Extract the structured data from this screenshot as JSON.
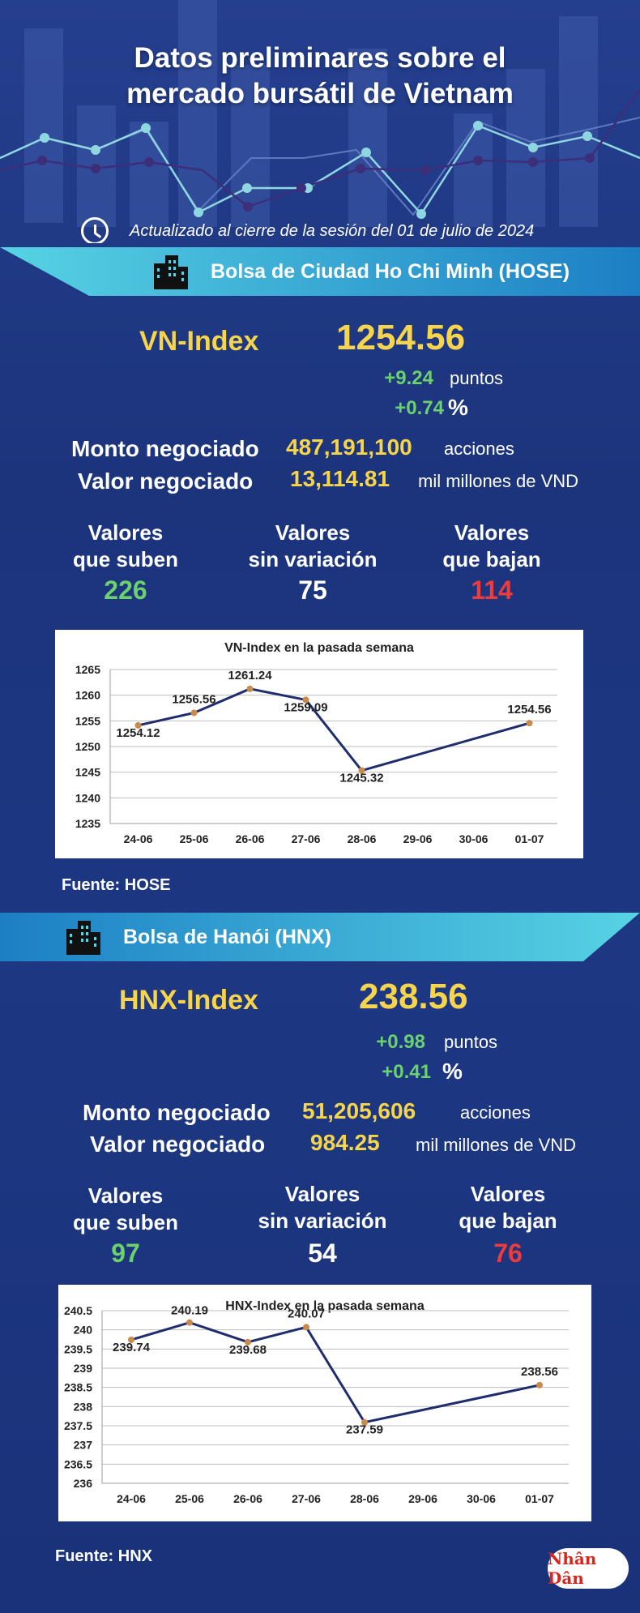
{
  "header": {
    "title_line1": "Datos preliminares sobre el",
    "title_line2": "mercado bursátil de Vietnam",
    "updated": "Actualizado al cierre de la sesión del 01 de julio de 2024"
  },
  "hose": {
    "exchange_label": "Bolsa de Ciudad Ho Chi Minh (HOSE)",
    "index_name": "VN-Index",
    "index_value": "1254.56",
    "change_points": "+9.24",
    "points_unit": "puntos",
    "change_percent": "+0.74",
    "percent_unit": "%",
    "volume_label": "Monto negociado",
    "volume_value": "487,191,100",
    "volume_unit": "acciones",
    "value_label": "Valor negociado",
    "value_value": "13,114.81",
    "value_unit": "mil millones de VND",
    "up_label_1": "Valores",
    "up_label_2": "que suben",
    "up_count": "226",
    "flat_label_1": "Valores",
    "flat_label_2": "sin variación",
    "flat_count": "75",
    "down_label_1": "Valores",
    "down_label_2": "que bajan",
    "down_count": "114",
    "source": "Fuente: HOSE"
  },
  "hnx": {
    "exchange_label": "Bolsa de Hanói (HNX)",
    "index_name": "HNX-Index",
    "index_value": "238.56",
    "change_points": "+0.98",
    "points_unit": "puntos",
    "change_percent": "+0.41",
    "percent_unit": "%",
    "volume_label": "Monto negociado",
    "volume_value": "51,205,606",
    "volume_unit": "acciones",
    "value_label": "Valor negociado",
    "value_value": "984.25",
    "value_unit": "mil millones de VND",
    "up_label_1": "Valores",
    "up_label_2": "que suben",
    "up_count": "97",
    "flat_label_1": "Valores",
    "flat_label_2": "sin variación",
    "flat_count": "54",
    "down_label_1": "Valores",
    "down_label_2": "que bajan",
    "down_count": "76",
    "source": "Fuente:  HNX"
  },
  "logo_text": "Nhân Dân",
  "colors": {
    "accent_yellow": "#f6d44c",
    "up_green": "#6ad16c",
    "down_red": "#ef3b3b",
    "banner_cyan": "#29b6d9",
    "line_navy": "#1f2d6e",
    "marker_orange": "#c98a4b"
  },
  "chart_data": [
    {
      "type": "line",
      "title": "VN-Index en la pasada semana",
      "categories": [
        "24-06",
        "25-06",
        "26-06",
        "27-06",
        "28-06",
        "29-06",
        "30-06",
        "01-07"
      ],
      "series": [
        {
          "values": [
            1254.12,
            1256.56,
            1261.24,
            1259.09,
            1245.32,
            null,
            null,
            1254.56
          ],
          "labels": [
            "1254.12",
            "1256.56",
            "1261.24",
            "1259.09",
            "1245.32",
            "",
            "",
            "1254.56"
          ]
        }
      ],
      "yticks": [
        "1235",
        "1240",
        "1245",
        "1250",
        "1255",
        "1260",
        "1265"
      ],
      "ylim": [
        1235,
        1265
      ],
      "grid": true,
      "legend": "none"
    },
    {
      "type": "line",
      "title": "HNX-Index en la pasada semana",
      "categories": [
        "24-06",
        "25-06",
        "26-06",
        "27-06",
        "28-06",
        "29-06",
        "30-06",
        "01-07"
      ],
      "series": [
        {
          "values": [
            239.74,
            240.19,
            239.68,
            240.07,
            237.59,
            null,
            null,
            238.56
          ],
          "labels": [
            "239.74",
            "240.19",
            "239.68",
            "240.07",
            "237.59",
            "",
            "",
            "238.56"
          ]
        }
      ],
      "yticks": [
        "236",
        "236.5",
        "237",
        "237.5",
        "238",
        "238.5",
        "239",
        "239.5",
        "240",
        "240.5"
      ],
      "ylim": [
        236,
        240.5
      ],
      "grid": true,
      "legend": "none"
    }
  ]
}
